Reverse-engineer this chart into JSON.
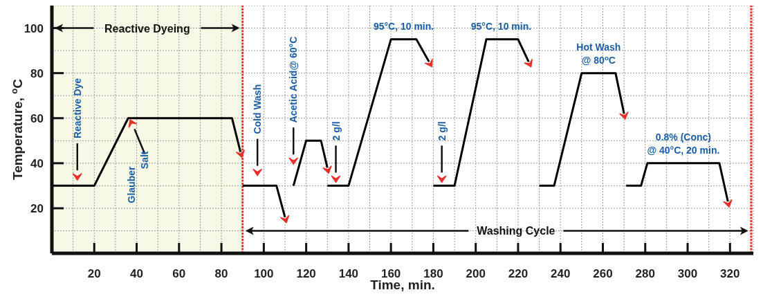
{
  "chart_data": {
    "type": "line",
    "xlabel": "Time, min.",
    "ylabel": "Temperature, $^{o}$C",
    "xlim": [
      0,
      331
    ],
    "ylim": [
      0,
      110
    ],
    "xticks": [
      {
        "value": 10,
        "label": null
      },
      20,
      {
        "value": 30,
        "label": null
      },
      40,
      {
        "value": 50,
        "label": null
      },
      60,
      {
        "value": 70,
        "label": null
      },
      80,
      100,
      {
        "value": 110,
        "label": null
      },
      120,
      {
        "value": 130,
        "label": null
      },
      140,
      {
        "value": 150,
        "label": null
      },
      160,
      {
        "value": 170,
        "label": null
      },
      180,
      {
        "value": 190,
        "label": null
      },
      200,
      {
        "value": 210,
        "label": null
      },
      220,
      {
        "value": 230,
        "label": null
      },
      240,
      {
        "value": 250,
        "label": null
      },
      260,
      {
        "value": 270,
        "label": null
      },
      280,
      {
        "value": 290,
        "label": null
      },
      300,
      {
        "value": 310,
        "label": null
      },
      320
    ],
    "yticks": [
      {
        "value": 10,
        "label": null
      },
      20,
      {
        "value": 30,
        "label": null
      },
      40,
      {
        "value": 50,
        "label": null
      },
      60,
      {
        "value": 70,
        "label": null
      },
      80,
      {
        "value": 90,
        "label": null
      },
      100
    ],
    "grid": true,
    "marker": "none",
    "line_style": "solid",
    "series": [
      {
        "color": "#000000",
        "x": [
          0,
          20,
          36,
          85,
          89
        ],
        "values": [
          30,
          30,
          60,
          60,
          45
        ]
      },
      {
        "color": "#000000",
        "x": [
          90,
          106,
          110
        ],
        "values": [
          30,
          30,
          16
        ]
      },
      {
        "color": "#000000",
        "x": [
          114,
          120,
          127,
          130
        ],
        "values": [
          30,
          50,
          50,
          38
        ]
      },
      {
        "color": "#000000",
        "x": [
          130,
          140,
          160,
          172,
          178
        ],
        "values": [
          30,
          30,
          95,
          95,
          85
        ]
      },
      {
        "color": "#000000",
        "x": [
          180,
          190,
          205,
          220,
          225
        ],
        "values": [
          30,
          30,
          95,
          95,
          85
        ]
      },
      {
        "color": "#000000",
        "x": [
          230,
          237,
          250,
          266,
          270
        ],
        "values": [
          30,
          30,
          80,
          80,
          62
        ]
      },
      {
        "color": "#000000",
        "x": [
          271,
          278,
          281,
          315,
          319
        ],
        "values": [
          30,
          30,
          40,
          40,
          23
        ]
      }
    ],
    "ref_lines": [
      {
        "axis": "x",
        "value": 90,
        "color": "#e8302a",
        "line_style": "dotted"
      },
      {
        "axis": "x",
        "value": 330,
        "color": "#e8302a",
        "line_style": "dotted"
      }
    ],
    "bands": [
      {
        "axis": "x",
        "from": 0,
        "to": 90,
        "label": "Reactive Dyeing",
        "color": "#f7f9e6"
      }
    ],
    "annotations": [
      "Reactive Dye",
      "Glauber Salt",
      "Cold Wash",
      "Acetic Acid@ 60°C",
      "2 g/l",
      "2 g/l",
      {
        "text": "95°C, 10 min.",
        "x": 166,
        "y": 95
      },
      {
        "text": "95°C, 10 min.",
        "x": 212,
        "y": 95
      },
      {
        "text": "Hot Wash\n@ 80$^{o}$C",
        "x": 258,
        "y": 80
      },
      {
        "text": "0.8% (Conc)\n@ 40°C,  20 min.",
        "x": 298,
        "y": 40
      },
      "Washing Cycle"
    ]
  }
}
